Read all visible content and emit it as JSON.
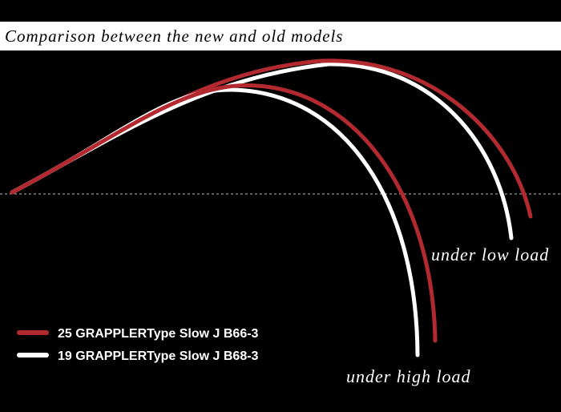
{
  "title": "Comparison between the new and old models",
  "legend": [
    "25 GRAPPLERType Slow J B66-3",
    "19 GRAPPLERType Slow J B68-3"
  ],
  "annotations": {
    "low_load": "under low load",
    "high_load": "under high load"
  }
}
